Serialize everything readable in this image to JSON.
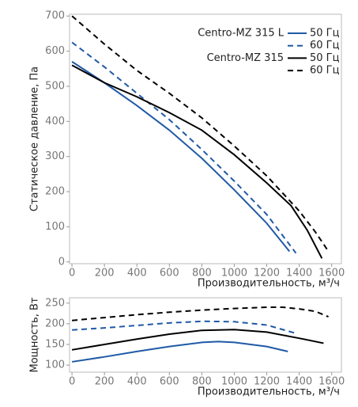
{
  "chart_data": [
    {
      "type": "line",
      "ylabel": "Статическое давление, Па",
      "xlabel": "Производительность, м³/ч",
      "xlim": [
        -15,
        1660
      ],
      "ylim": [
        -5,
        705
      ],
      "xticks": [
        0,
        200,
        400,
        600,
        800,
        1000,
        1200,
        1400,
        1600
      ],
      "yticks": [
        0,
        100,
        200,
        300,
        400,
        500,
        600,
        700
      ],
      "legend": "upper right",
      "series_groups": [
        {
          "name": "Centro-MZ 315 L",
          "series": [
            {
              "name": "50 Гц",
              "color": "#1f5aa6",
              "dash": false,
              "x": [
                0,
                200,
                400,
                600,
                800,
                1000,
                1200,
                1340
              ],
              "values": [
                570,
                510,
                445,
                375,
                295,
                205,
                110,
                30
              ]
            },
            {
              "name": "60 Гц",
              "color": "#1f5aa6",
              "dash": true,
              "x": [
                0,
                200,
                400,
                600,
                800,
                1000,
                1200,
                1380
              ],
              "values": [
                625,
                555,
                480,
                405,
                320,
                230,
                135,
                25
              ]
            }
          ]
        },
        {
          "name": "Centro-MZ 315",
          "series": [
            {
              "name": "50 Гц",
              "color": "#000000",
              "dash": false,
              "x": [
                0,
                200,
                400,
                600,
                800,
                1000,
                1200,
                1350,
                1450,
                1540
              ],
              "values": [
                560,
                510,
                470,
                425,
                375,
                305,
                225,
                160,
                90,
                10
              ]
            },
            {
              "name": "60 Гц",
              "color": "#000000",
              "dash": true,
              "x": [
                0,
                200,
                400,
                600,
                800,
                1000,
                1200,
                1400,
                1500,
                1580
              ],
              "values": [
                700,
                620,
                545,
                480,
                410,
                330,
                245,
                145,
                85,
                30
              ]
            }
          ]
        }
      ]
    },
    {
      "type": "line",
      "ylabel": "Мощность, Вт",
      "xlabel": "Производительность, м³/ч",
      "xlim": [
        -15,
        1660
      ],
      "ylim": [
        83,
        263
      ],
      "xticks": [
        0,
        200,
        400,
        600,
        800,
        1000,
        1200,
        1400,
        1600
      ],
      "yticks": [
        100,
        150,
        200,
        250
      ],
      "series_groups": [
        {
          "series": [
            {
              "color": "#1f5aa6",
              "dash": false,
              "x": [
                0,
                200,
                400,
                600,
                800,
                900,
                1000,
                1200,
                1330
              ],
              "values": [
                108,
                120,
                133,
                145,
                155,
                157,
                155,
                145,
                133
              ]
            },
            {
              "color": "#1f5aa6",
              "dash": true,
              "x": [
                0,
                200,
                400,
                600,
                800,
                1000,
                1200,
                1370
              ],
              "values": [
                185,
                190,
                196,
                202,
                206,
                205,
                197,
                178
              ]
            }
          ]
        },
        {
          "series": [
            {
              "color": "#000000",
              "dash": false,
              "x": [
                0,
                200,
                400,
                600,
                800,
                1000,
                1200,
                1400,
                1550
              ],
              "values": [
                137,
                150,
                163,
                175,
                184,
                186,
                180,
                165,
                153
              ]
            },
            {
              "color": "#000000",
              "dash": true,
              "x": [
                0,
                200,
                400,
                600,
                800,
                1000,
                1200,
                1300,
                1400,
                1500,
                1580
              ],
              "values": [
                208,
                215,
                222,
                228,
                233,
                237,
                240,
                240,
                236,
                230,
                217
              ]
            }
          ]
        }
      ]
    }
  ]
}
